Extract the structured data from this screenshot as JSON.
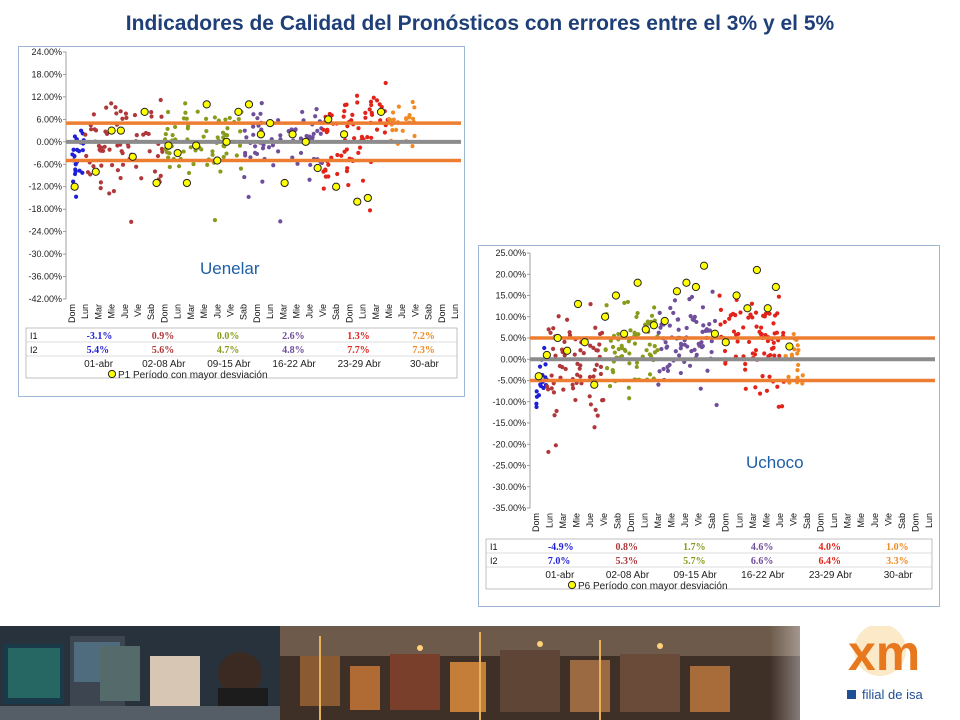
{
  "title": "Indicadores de Calidad del Pronósticos con errores entre el 3% y el 5%",
  "colors": {
    "title": "#1f3f79",
    "band_line": "#ed7d31",
    "zero_line": "#8c8c8c",
    "week_colors": [
      "#1f1fd6",
      "#b0373a",
      "#8a9a1c",
      "#6f4e9b",
      "#e2231a",
      "#f08a24"
    ],
    "marker_fill": "#ffff00"
  },
  "chart_data": [
    {
      "type": "scatter",
      "label": "Uenelar",
      "ylim": [
        -42,
        24
      ],
      "yticks": [
        "24.00%",
        "18.00%",
        "12.00%",
        "6.00%",
        "0.00%",
        "-6.00%",
        "-12.00%",
        "-18.00%",
        "-24.00%",
        "-30.00%",
        "-36.00%",
        "-42.00%"
      ],
      "band": [
        5,
        -5
      ],
      "xlabels": [
        "Dom",
        "Lun",
        "Mar",
        "Mie",
        "Jue",
        "Vie",
        "Sab",
        "Dom",
        "Lun",
        "Mar",
        "Mie",
        "Jue",
        "Vie",
        "Sab",
        "Dom",
        "Lun",
        "Mar",
        "Mie",
        "Jue",
        "Vie",
        "Sab",
        "Dom",
        "Lun",
        "Mar",
        "Mie",
        "Jue",
        "Vie",
        "Sab",
        "Dom",
        "Lun"
      ],
      "table": {
        "row_labels": [
          "I1",
          "I2"
        ],
        "I1": [
          "-3.1%",
          "0.9%",
          "0.0%",
          "2.6%",
          "1.3%",
          "7.2%"
        ],
        "I2": [
          "5.4%",
          "5.6%",
          "4.7%",
          "4.8%",
          "7.7%",
          "7.3%"
        ],
        "periods": [
          "01-abr",
          "02-08 Abr",
          "09-15 Abr",
          "16-22 Abr",
          "23-29 Abr",
          "30-abr"
        ]
      },
      "legend": "P1  Período con mayor desviación",
      "highlight_points": [
        [
          0.2,
          -12
        ],
        [
          1.8,
          -8
        ],
        [
          3,
          3
        ],
        [
          3.7,
          3
        ],
        [
          4.6,
          -4
        ],
        [
          5.5,
          8
        ],
        [
          6.4,
          -11
        ],
        [
          7.3,
          -1
        ],
        [
          8,
          -3
        ],
        [
          8.7,
          -11
        ],
        [
          9.4,
          -1
        ],
        [
          10.2,
          10
        ],
        [
          11,
          -5
        ],
        [
          11.7,
          0
        ],
        [
          12.6,
          8
        ],
        [
          13.4,
          10
        ],
        [
          14.3,
          2
        ],
        [
          15,
          5
        ],
        [
          16.1,
          -11
        ],
        [
          16.7,
          2
        ],
        [
          17.7,
          0
        ],
        [
          18.6,
          -7
        ],
        [
          19.4,
          6
        ],
        [
          20,
          -12
        ],
        [
          20.6,
          2
        ],
        [
          21.6,
          -16
        ],
        [
          22.4,
          -15
        ],
        [
          23.4,
          8
        ]
      ],
      "series": [
        {
          "name": "",
          "color_idx": 0,
          "x": [
            0,
            1
          ],
          "y_mid": [
            -6,
            2
          ],
          "spread": 5,
          "n": 26
        },
        {
          "name": "",
          "color_idx": 1,
          "x": [
            1,
            7
          ],
          "y_mid": [
            0,
            0
          ],
          "spread": 9,
          "n": 70
        },
        {
          "name": "",
          "color_idx": 2,
          "x": [
            7,
            13
          ],
          "y_mid": [
            0,
            0
          ],
          "spread": 7,
          "n": 70
        },
        {
          "name": "",
          "color_idx": 3,
          "x": [
            13,
            19
          ],
          "y_mid": [
            0,
            0
          ],
          "spread": 7,
          "n": 70
        },
        {
          "name": "",
          "color_idx": 4,
          "x": [
            19,
            24
          ],
          "y_mid": [
            -2,
            8
          ],
          "spread": 10,
          "n": 75
        },
        {
          "name": "",
          "color_idx": 5,
          "x": [
            24,
            26
          ],
          "y_mid": [
            6,
            6
          ],
          "spread": 5,
          "n": 24
        }
      ]
    },
    {
      "type": "scatter",
      "label": "Uchoco",
      "ylim": [
        -35,
        25
      ],
      "yticks": [
        "25.00%",
        "20.00%",
        "15.00%",
        "10.00%",
        "5.00%",
        "0.00%",
        "-5.00%",
        "-10.00%",
        "-15.00%",
        "-20.00%",
        "-25.00%",
        "-30.00%",
        "-35.00%"
      ],
      "band": [
        5,
        -5
      ],
      "xlabels": [
        "Dom",
        "Lun",
        "Mar",
        "Mie",
        "Jue",
        "Vie",
        "Sab",
        "Dom",
        "Lun",
        "Mar",
        "Mie",
        "Jue",
        "Vie",
        "Sab",
        "Dom",
        "Lun",
        "Mar",
        "Mie",
        "Jue",
        "Vie",
        "Sab",
        "Dom",
        "Lun",
        "Mar",
        "Mie",
        "Jue",
        "Vie",
        "Sab",
        "Dom",
        "Lun"
      ],
      "table": {
        "row_labels": [
          "I1",
          "I2"
        ],
        "I1": [
          "-4.9%",
          "0.8%",
          "1.7%",
          "4.6%",
          "4.0%",
          "1.0%"
        ],
        "I2": [
          "7.0%",
          "5.3%",
          "5.7%",
          "6.6%",
          "6.4%",
          "3.3%"
        ],
        "periods": [
          "01-abr",
          "02-08 Abr",
          "09-15 Abr",
          "16-22 Abr",
          "23-29 Abr",
          "30-abr"
        ]
      },
      "legend": "P6  Período con mayor desviación",
      "highlight_points": [
        [
          0.2,
          -4
        ],
        [
          0.8,
          1
        ],
        [
          1.6,
          5
        ],
        [
          2.3,
          2
        ],
        [
          3.1,
          13
        ],
        [
          3.6,
          4
        ],
        [
          4.3,
          -6
        ],
        [
          5.1,
          10
        ],
        [
          5.9,
          15
        ],
        [
          6.5,
          6
        ],
        [
          7.5,
          18
        ],
        [
          8.1,
          7
        ],
        [
          8.7,
          8
        ],
        [
          9.5,
          9
        ],
        [
          10.4,
          16
        ],
        [
          11.1,
          18
        ],
        [
          11.8,
          17
        ],
        [
          12.4,
          22
        ],
        [
          13.2,
          6
        ],
        [
          14,
          4
        ],
        [
          14.8,
          15
        ],
        [
          15.6,
          12
        ],
        [
          16.3,
          21
        ],
        [
          17.1,
          12
        ],
        [
          17.7,
          17
        ],
        [
          18.7,
          3
        ]
      ],
      "series": [
        {
          "name": "",
          "color_idx": 0,
          "x": [
            0,
            0.8
          ],
          "y_mid": [
            -6,
            -2
          ],
          "spread": 5,
          "n": 20
        },
        {
          "name": "",
          "color_idx": 1,
          "x": [
            0.8,
            5
          ],
          "y_mid": [
            0,
            0
          ],
          "spread": 10,
          "n": 70
        },
        {
          "name": "",
          "color_idx": 2,
          "x": [
            5,
            9
          ],
          "y_mid": [
            0,
            5
          ],
          "spread": 8,
          "n": 70
        },
        {
          "name": "",
          "color_idx": 3,
          "x": [
            9,
            13.5
          ],
          "y_mid": [
            3,
            8
          ],
          "spread": 8,
          "n": 75
        },
        {
          "name": "",
          "color_idx": 4,
          "x": [
            13.5,
            18.3
          ],
          "y_mid": [
            5,
            3
          ],
          "spread": 9,
          "n": 80
        },
        {
          "name": "",
          "color_idx": 5,
          "x": [
            18.3,
            19.7
          ],
          "y_mid": [
            0,
            0
          ],
          "spread": 5,
          "n": 20
        }
      ]
    }
  ],
  "banner": {
    "logo_text": "xm",
    "tagline": "filial de isa"
  }
}
